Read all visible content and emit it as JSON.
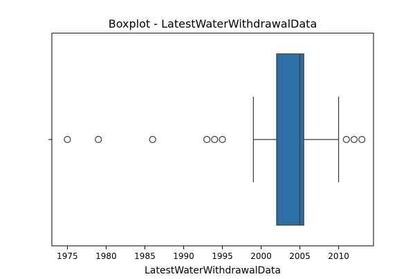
{
  "chart_data": {
    "type": "boxplot",
    "title": "Boxplot - LatestWaterWithdrawalData",
    "xlabel": "LatestWaterWithdrawalData",
    "ylabel": "",
    "orientation": "horizontal",
    "xlim": [
      1973,
      2014.5
    ],
    "xticks": [
      1975,
      1980,
      1985,
      1990,
      1995,
      2000,
      2005,
      2010
    ],
    "grid": false,
    "box_color": "#2e6fa6",
    "stats": {
      "whisker_low": 1999,
      "q1": 2002,
      "median": 2005,
      "q3": 2005.5,
      "whisker_high": 2010
    },
    "outliers": [
      1975,
      1979,
      1986,
      1993,
      1994,
      1995,
      2011,
      2012,
      2013
    ]
  }
}
